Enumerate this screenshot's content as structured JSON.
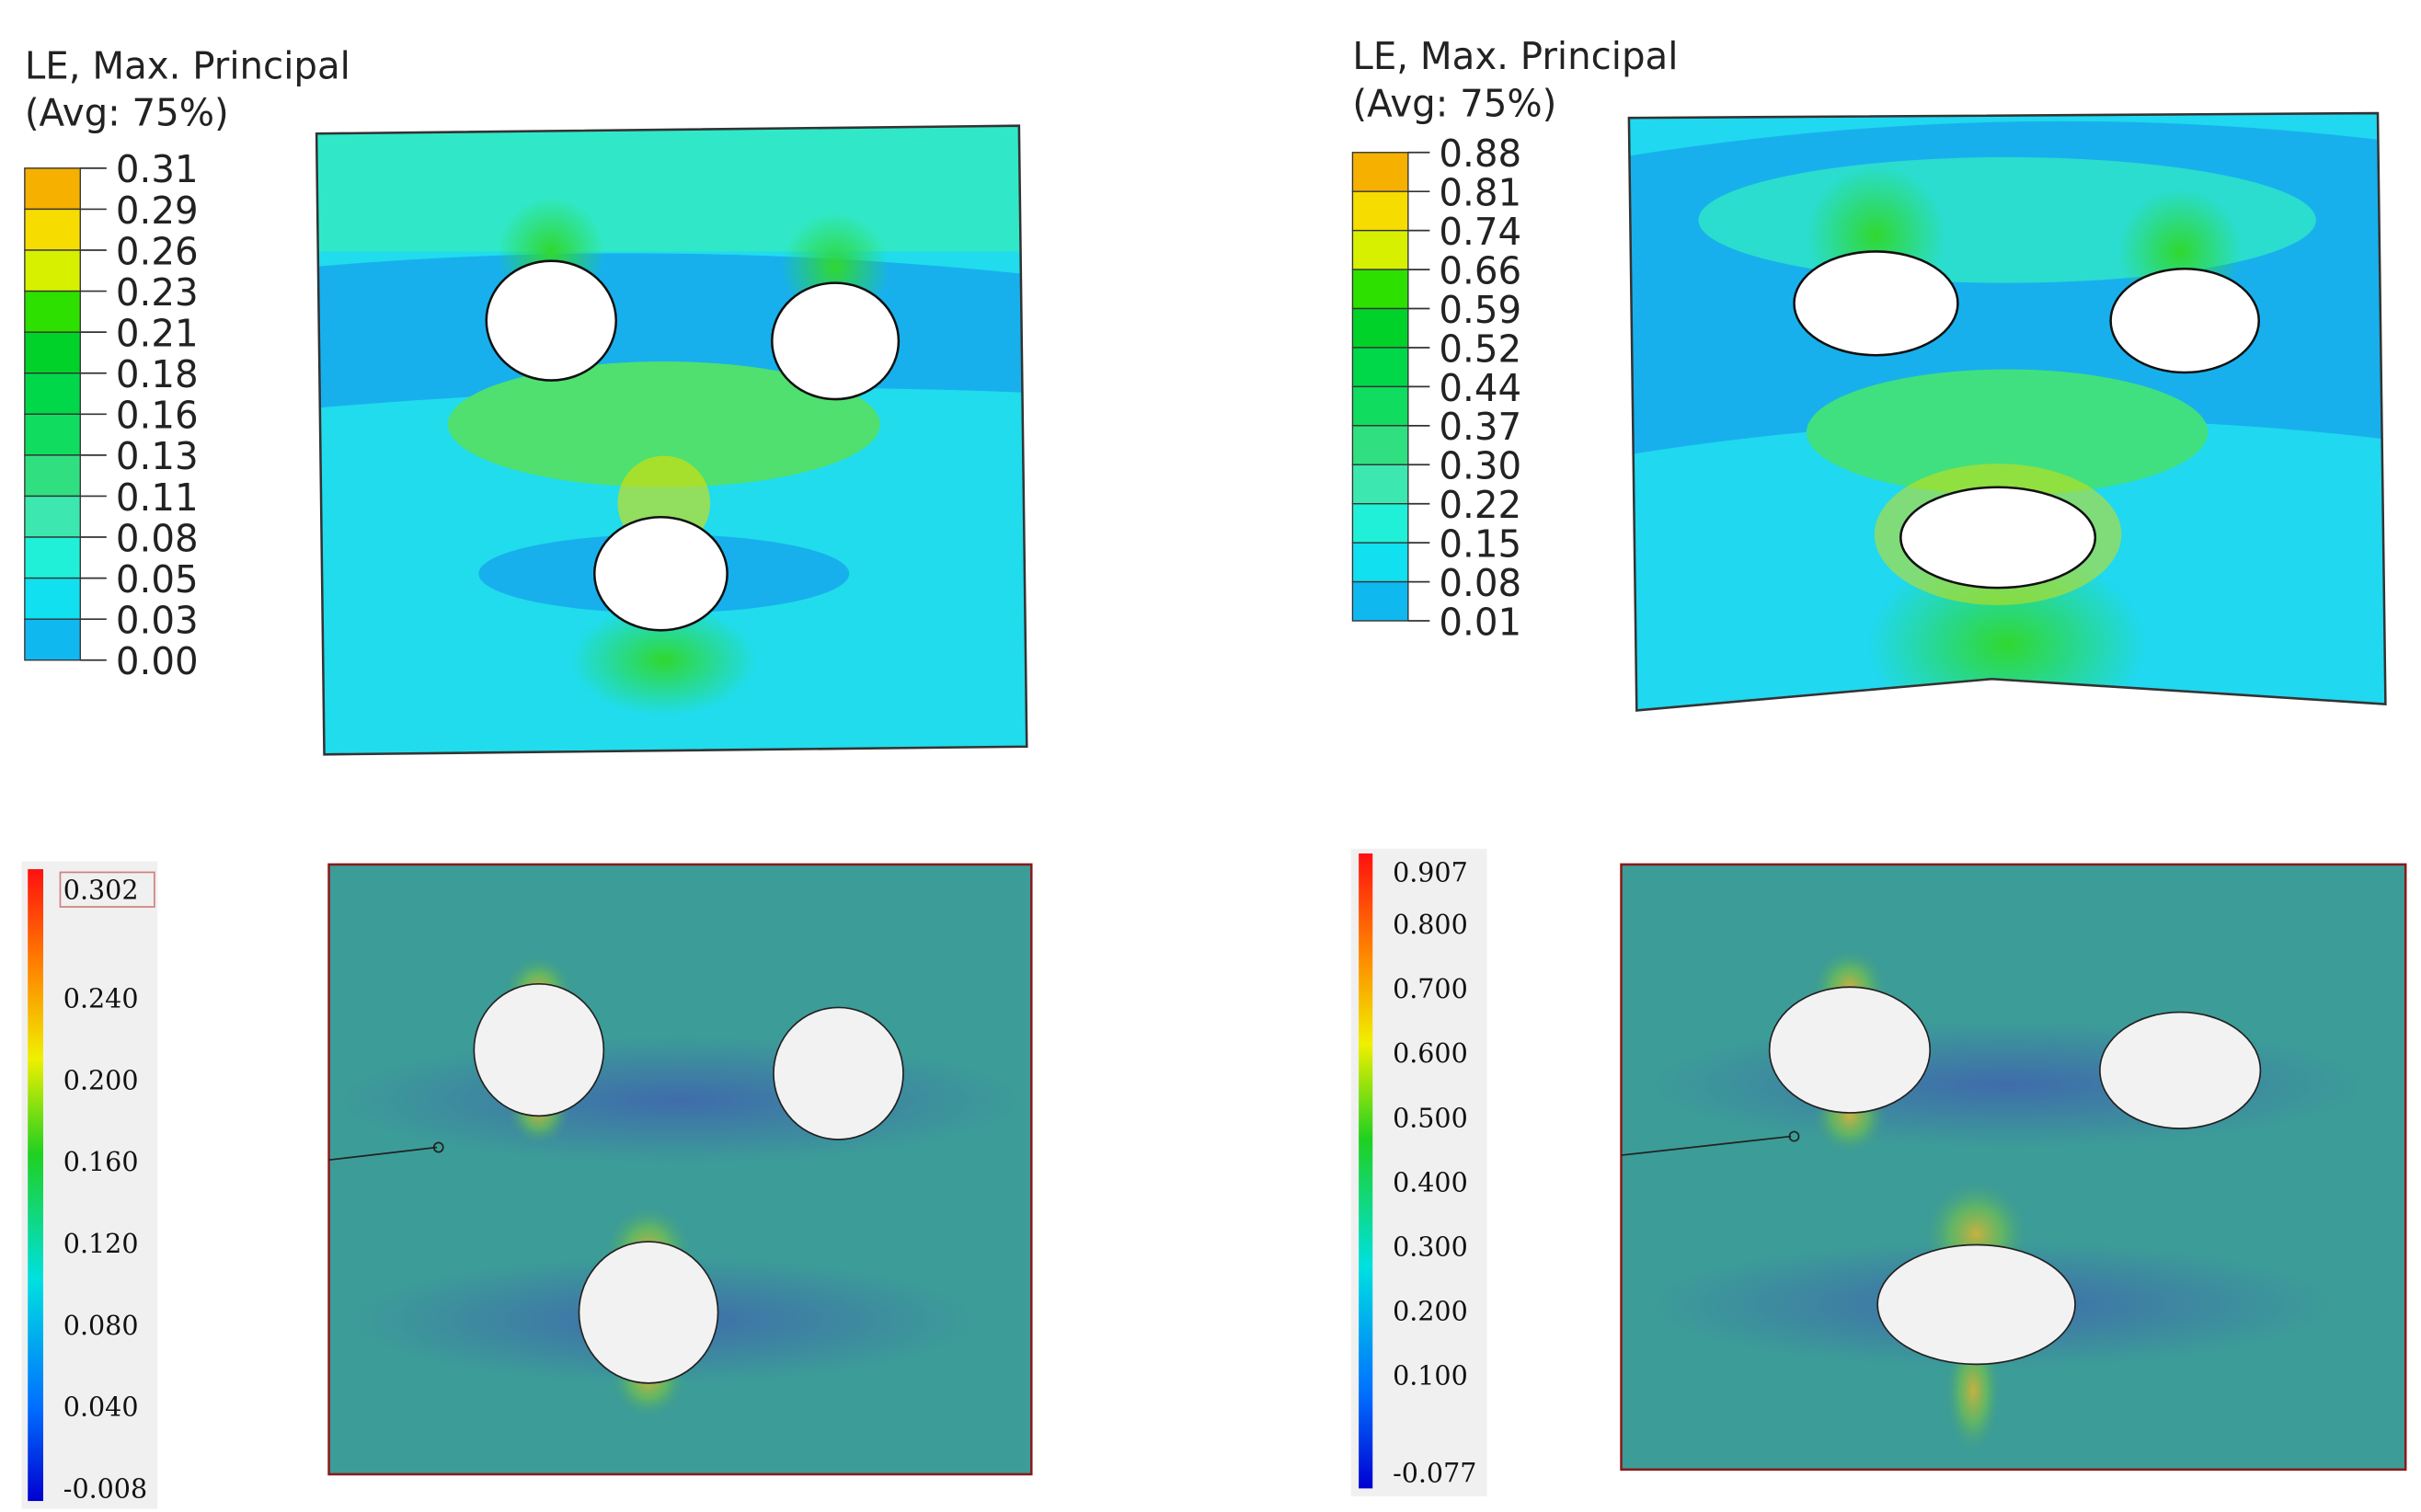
{
  "panels": [
    {
      "title": "LE, Max. Principal",
      "subtitle": "(Avg: 75%)",
      "legend_labels": [
        "0.31",
        "0.29",
        "0.26",
        "0.23",
        "0.21",
        "0.18",
        "0.16",
        "0.13",
        "0.11",
        "0.08",
        "0.05",
        "0.03",
        "0.00"
      ]
    },
    {
      "title": "LE, Max. Principal",
      "subtitle": "(Avg: 75%)",
      "legend_labels": [
        "0.88",
        "0.81",
        "0.74",
        "0.66",
        "0.59",
        "0.52",
        "0.44",
        "0.37",
        "0.30",
        "0.22",
        "0.15",
        "0.08",
        "0.01"
      ]
    },
    {
      "legend_labels": [
        "0.302",
        "0.240",
        "0.200",
        "0.160",
        "0.120",
        "0.080",
        "0.040",
        "-0.008"
      ]
    },
    {
      "legend_labels": [
        "0.907",
        "0.800",
        "0.700",
        "0.600",
        "0.500",
        "0.400",
        "0.300",
        "0.200",
        "0.100",
        "-0.077"
      ]
    }
  ]
}
